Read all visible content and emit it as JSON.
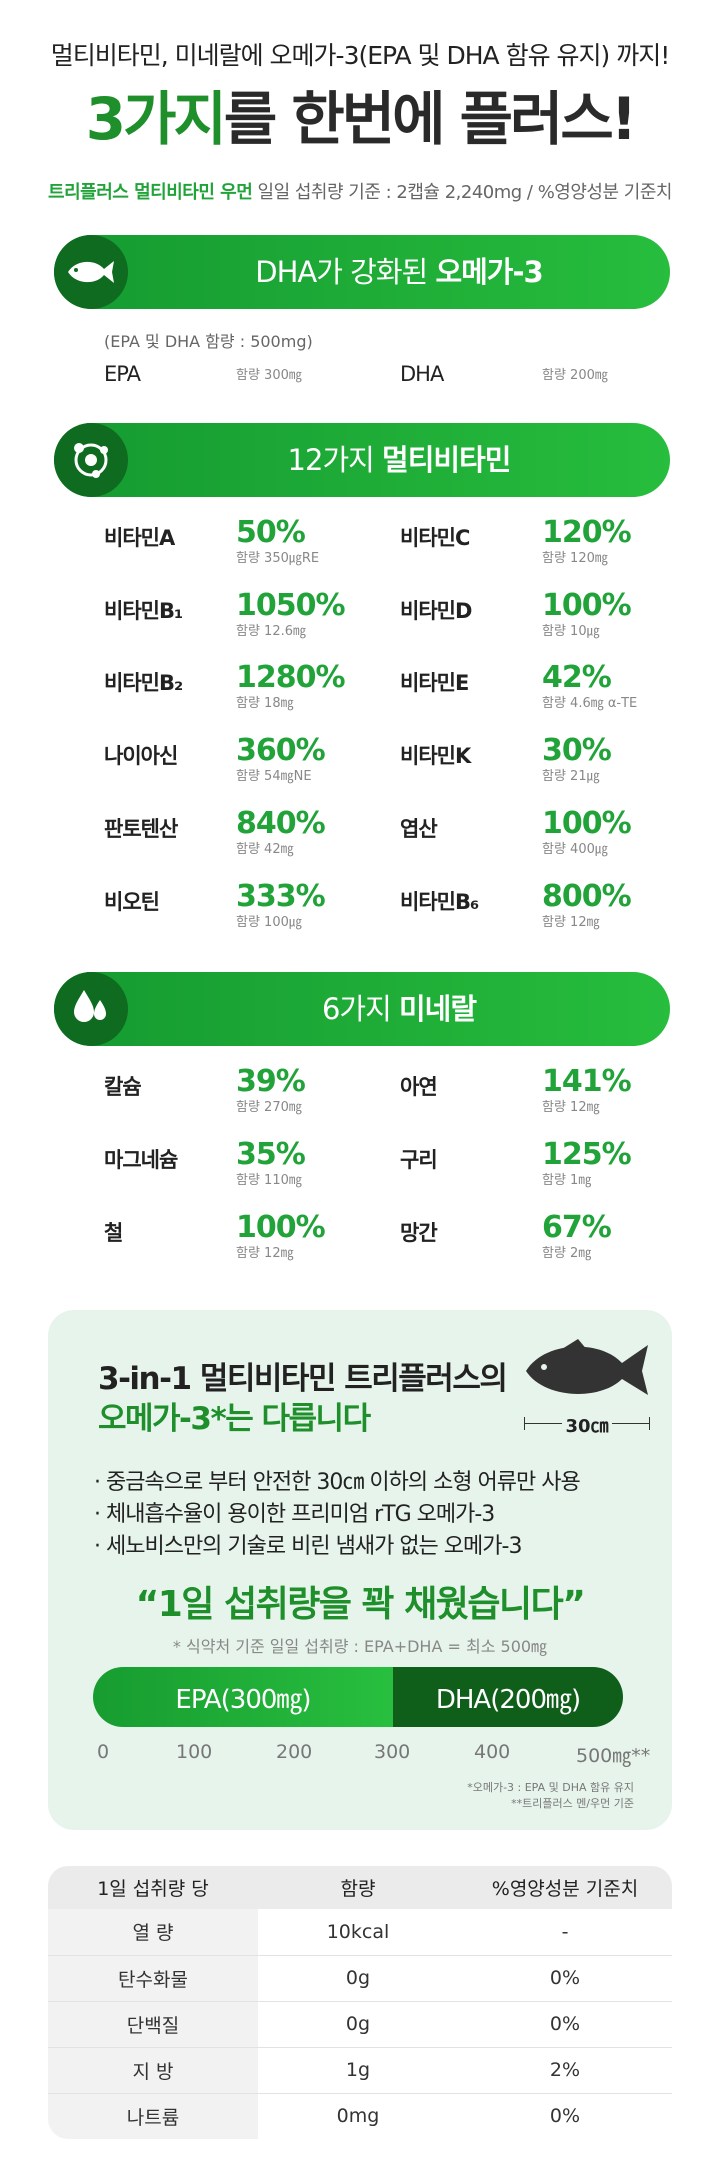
{
  "header": {
    "sub_headline": "멀티비타민, 미네랄에 오메가-3(EPA 및 DHA 함유 유지) 까지!",
    "headline_highlight": "3가지",
    "headline_rest": "를 한번에 플러스!",
    "brand": "트리플러스 멀티비타민 우먼",
    "serving_info": " 일일 섭취량 기준 : 2캡슐 2,240mg / %영양성분 기준치"
  },
  "omega": {
    "title_light": "DHA가 강화된 ",
    "title_bold": "오메가-3",
    "note": "(EPA 및 DHA 함량 : 500mg)",
    "items": [
      {
        "name": "EPA",
        "amount": "함량 300㎎"
      },
      {
        "name": "DHA",
        "amount": "함량 200㎎"
      }
    ]
  },
  "vitamins": {
    "title_light": "12가지 ",
    "title_bold": "멀티비타민",
    "items": [
      {
        "name": "비타민A",
        "pct": "50%",
        "amount": "함량 350㎍RE"
      },
      {
        "name": "비타민C",
        "pct": "120%",
        "amount": "함량 120㎎"
      },
      {
        "name": "비타민B₁",
        "pct": "1050%",
        "amount": "함량 12.6㎎"
      },
      {
        "name": "비타민D",
        "pct": "100%",
        "amount": "함량 10㎍"
      },
      {
        "name": "비타민B₂",
        "pct": "1280%",
        "amount": "함량 18㎎"
      },
      {
        "name": "비타민E",
        "pct": "42%",
        "amount": "함량 4.6㎎ α-TE"
      },
      {
        "name": "나이아신",
        "pct": "360%",
        "amount": "함량 54㎎NE"
      },
      {
        "name": "비타민K",
        "pct": "30%",
        "amount": "함량 21㎍"
      },
      {
        "name": "판토텐산",
        "pct": "840%",
        "amount": "함량 42㎎"
      },
      {
        "name": "엽산",
        "pct": "100%",
        "amount": "함량 400㎍"
      },
      {
        "name": "비오틴",
        "pct": "333%",
        "amount": "함량 100㎍"
      },
      {
        "name": "비타민B₆",
        "pct": "800%",
        "amount": "함량 12㎎"
      }
    ]
  },
  "minerals": {
    "title_light": "6가지 ",
    "title_bold": "미네랄",
    "items": [
      {
        "name": "칼슘",
        "pct": "39%",
        "amount": "함량 270㎎"
      },
      {
        "name": "아연",
        "pct": "141%",
        "amount": "함량 12㎎"
      },
      {
        "name": "마그네슘",
        "pct": "35%",
        "amount": "함량 110㎎"
      },
      {
        "name": "구리",
        "pct": "125%",
        "amount": "함량 1㎎"
      },
      {
        "name": "철",
        "pct": "100%",
        "amount": "함량 12㎎"
      },
      {
        "name": "망간",
        "pct": "67%",
        "amount": "함량 2㎎"
      }
    ]
  },
  "info": {
    "title_line1": "3-in-1 멀티비타민 트리플러스의",
    "title_line2": "오메가-3*는 다릅니다",
    "fish_size": "30㎝",
    "bullets": [
      "· 중금속으로 부터 안전한 30㎝ 이하의 소형 어류만 사용",
      "· 체내흡수율이 용이한 프리미엄 rTG 오메가-3",
      "· 세노비스만의 기술로 비린 냄새가 없는 오메가-3"
    ],
    "quote": "“1일 섭취량을 꽉 채웠습니다”",
    "quote_note": "* 식약처 기준 일일 섭취량 : EPA+DHA = 최소 500㎎",
    "bar_epa": "EPA(300㎎)",
    "bar_dha": "DHA(200㎎)",
    "ticks": [
      "0",
      "100",
      "200",
      "300",
      "400",
      "500㎎**"
    ],
    "footnote1": "*오메가-3 : EPA 및 DHA 함유 유지",
    "footnote2": "**트리플러스 멘/우먼 기준"
  },
  "table": {
    "headers": [
      "1일 섭취량 당",
      "함량",
      "%영양성분 기준치"
    ],
    "rows": [
      [
        "열 량",
        "10kcal",
        "-"
      ],
      [
        "탄수화물",
        "0g",
        "0%"
      ],
      [
        "단백질",
        "0g",
        "0%"
      ],
      [
        "지 방",
        "1g",
        "2%"
      ],
      [
        "나트륨",
        "0mg",
        "0%"
      ]
    ]
  },
  "colors": {
    "brand_green": "#1e8f2a",
    "accent_green": "#21a33a",
    "dark_green": "#0e6b1f",
    "info_bg": "#e7f4ec"
  }
}
